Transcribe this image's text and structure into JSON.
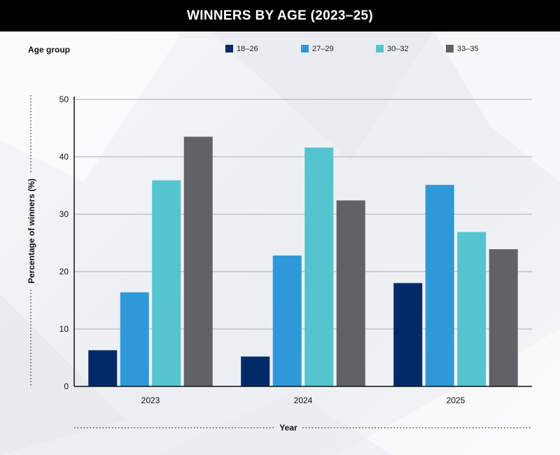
{
  "chart_data": {
    "type": "bar",
    "title": "WINNERS BY AGE (2023–25)",
    "legend_title": "Age group",
    "legend_position": "top",
    "xlabel": "Year",
    "ylabel": "Percentage of winners (%)",
    "ylim": [
      0,
      50
    ],
    "yticks": [
      0,
      10,
      20,
      30,
      40,
      50
    ],
    "grid": true,
    "categories": [
      "2023",
      "2024",
      "2025"
    ],
    "series": [
      {
        "name": "18–26",
        "color": "#002b66",
        "values": [
          6.3,
          5.2,
          18.0
        ]
      },
      {
        "name": "27–29",
        "color": "#2f99d8",
        "values": [
          16.4,
          22.8,
          35.1
        ]
      },
      {
        "name": "30–32",
        "color": "#56c4ce",
        "values": [
          35.9,
          41.6,
          26.9
        ]
      },
      {
        "name": "33–35",
        "color": "#616266",
        "values": [
          43.5,
          32.4,
          23.9
        ]
      }
    ]
  }
}
